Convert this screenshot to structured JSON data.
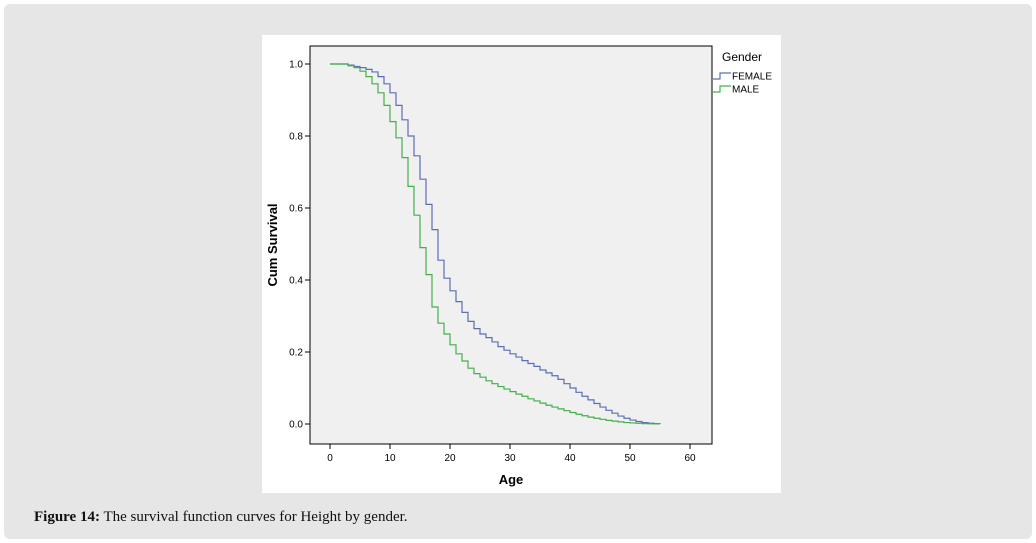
{
  "caption": {
    "label": "Figure 14:",
    "text": " The survival function curves for Height by gender."
  },
  "chart_data": {
    "type": "line",
    "title": "",
    "xlabel": "Age",
    "ylabel": "Cum Survival",
    "xlim": [
      0,
      60
    ],
    "ylim": [
      0,
      1
    ],
    "xticks": [
      0,
      10,
      20,
      30,
      40,
      50,
      60
    ],
    "yticks": [
      0.0,
      0.2,
      0.4,
      0.6,
      0.8,
      1.0
    ],
    "xtick_labels": [
      "0",
      "10",
      "20",
      "30",
      "40",
      "50",
      "60"
    ],
    "ytick_labels": [
      "0.0",
      "0.2",
      "0.4",
      "0.6",
      "0.8",
      "1.0"
    ],
    "grid": false,
    "step": true,
    "legend": {
      "title": "Gender",
      "position": "right-outside-top"
    },
    "series": [
      {
        "name": "FEMALE",
        "color": "#5b6fb5",
        "x": [
          0,
          3,
          4,
          5,
          6,
          7,
          8,
          9,
          10,
          11,
          12,
          13,
          14,
          15,
          16,
          17,
          18,
          19,
          20,
          21,
          22,
          23,
          24,
          25,
          26,
          27,
          28,
          29,
          30,
          31,
          32,
          33,
          34,
          35,
          36,
          37,
          38,
          39,
          40,
          41,
          42,
          43,
          44,
          45,
          46,
          47,
          48,
          49,
          50,
          51,
          52,
          53,
          54,
          55
        ],
        "y": [
          1.0,
          0.997,
          0.993,
          0.99,
          0.985,
          0.978,
          0.965,
          0.945,
          0.92,
          0.885,
          0.845,
          0.8,
          0.745,
          0.68,
          0.61,
          0.54,
          0.455,
          0.405,
          0.37,
          0.34,
          0.31,
          0.285,
          0.265,
          0.25,
          0.24,
          0.228,
          0.215,
          0.205,
          0.195,
          0.186,
          0.176,
          0.168,
          0.16,
          0.15,
          0.142,
          0.134,
          0.124,
          0.112,
          0.1,
          0.088,
          0.077,
          0.067,
          0.057,
          0.047,
          0.038,
          0.03,
          0.022,
          0.016,
          0.011,
          0.007,
          0.004,
          0.002,
          0.001,
          0.0
        ]
      },
      {
        "name": "MALE",
        "color": "#43b04a",
        "x": [
          0,
          3,
          4,
          5,
          6,
          7,
          8,
          9,
          10,
          11,
          12,
          13,
          14,
          15,
          16,
          17,
          18,
          19,
          20,
          21,
          22,
          23,
          24,
          25,
          26,
          27,
          28,
          29,
          30,
          31,
          32,
          33,
          34,
          35,
          36,
          37,
          38,
          39,
          40,
          41,
          42,
          43,
          44,
          45,
          46,
          47,
          48,
          49,
          50,
          51,
          52,
          53,
          54,
          55
        ],
        "y": [
          1.0,
          0.995,
          0.99,
          0.98,
          0.965,
          0.945,
          0.92,
          0.885,
          0.84,
          0.795,
          0.74,
          0.66,
          0.58,
          0.49,
          0.415,
          0.325,
          0.28,
          0.25,
          0.22,
          0.195,
          0.175,
          0.155,
          0.14,
          0.13,
          0.12,
          0.112,
          0.104,
          0.097,
          0.09,
          0.083,
          0.077,
          0.07,
          0.064,
          0.058,
          0.052,
          0.047,
          0.042,
          0.037,
          0.032,
          0.027,
          0.023,
          0.019,
          0.016,
          0.013,
          0.01,
          0.008,
          0.006,
          0.004,
          0.003,
          0.002,
          0.001,
          0.0007,
          0.0003,
          0.0
        ]
      }
    ]
  }
}
